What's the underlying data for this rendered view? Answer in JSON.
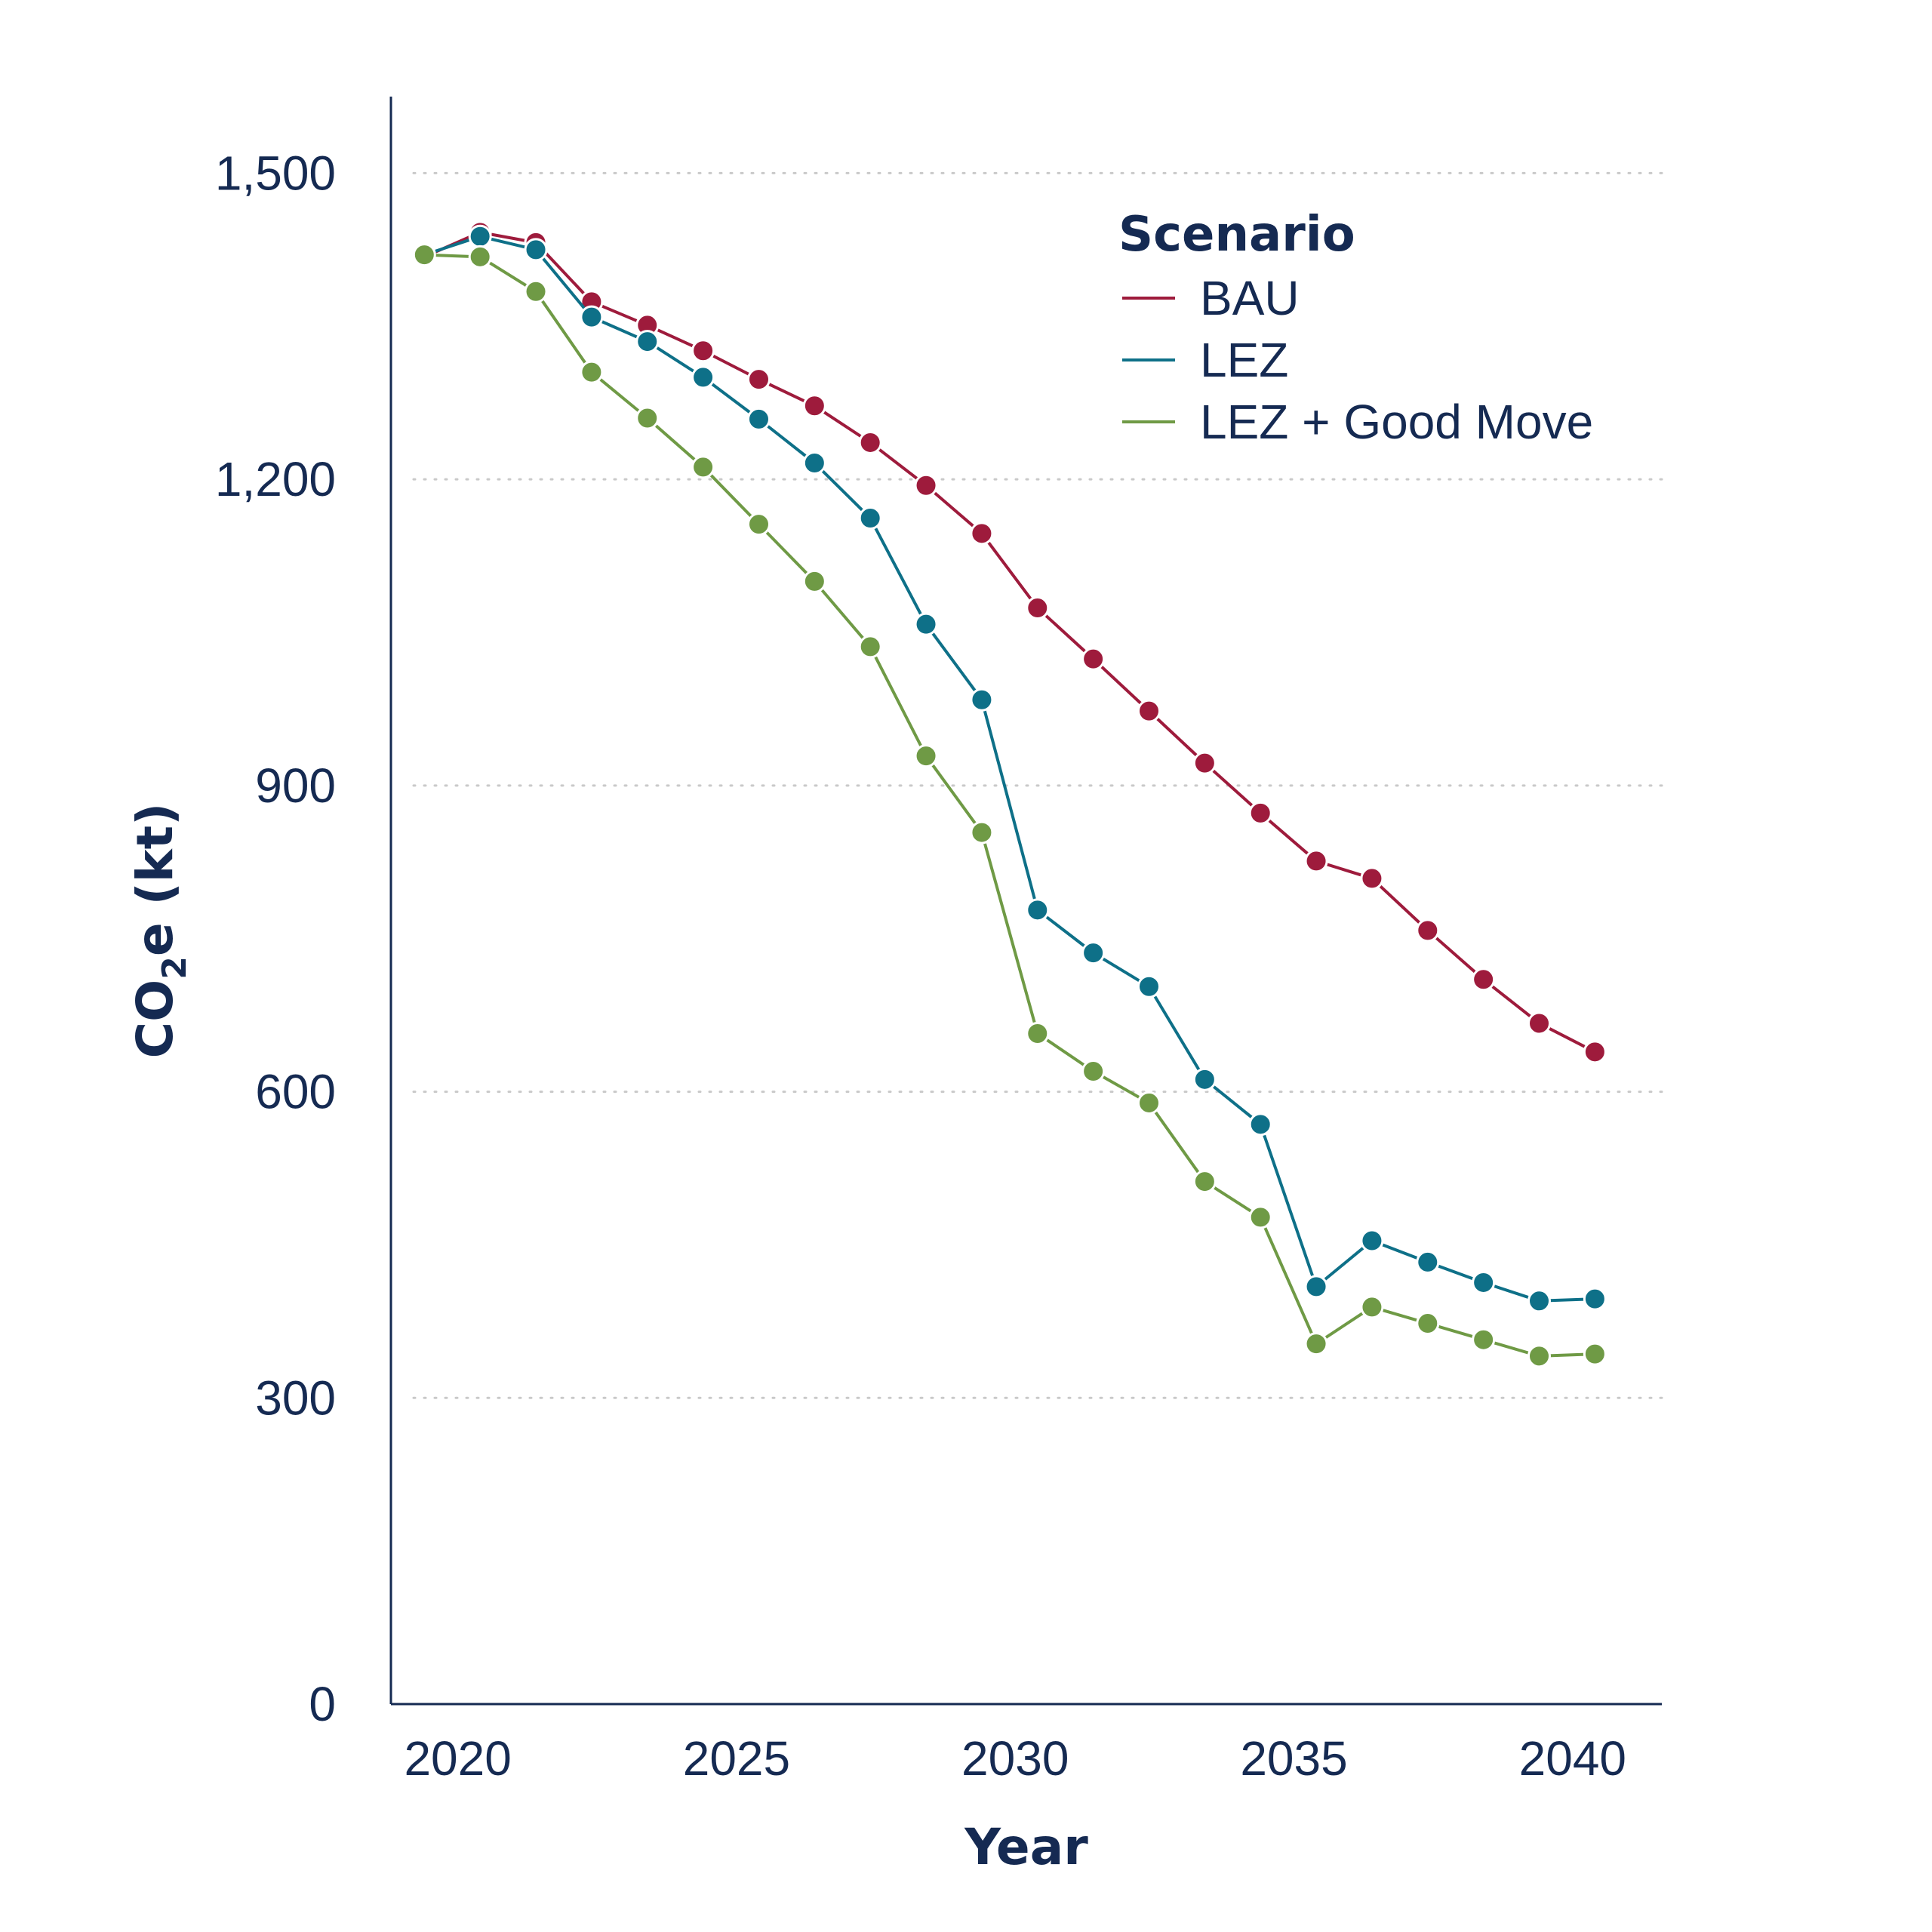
{
  "chart_data": {
    "type": "line",
    "xlabel": "Year",
    "ylabel": "CO",
    "ylabel_subscript": "2",
    "ylabel_suffix": "e (kt)",
    "xlim": [
      2018.8,
      2041.6
    ],
    "ylim": [
      0,
      1575
    ],
    "xticks": [
      2020,
      2025,
      2030,
      2035,
      2040
    ],
    "xtick_labels": [
      "2020",
      "2025",
      "2030",
      "2035",
      "2040"
    ],
    "yticks": [
      0,
      300,
      600,
      900,
      1200,
      1500
    ],
    "ytick_labels": [
      "0",
      "300",
      "600",
      "900",
      "1,200",
      "1,500"
    ],
    "grid": true,
    "legend": {
      "title": "Scenario",
      "placement": "top-right"
    },
    "x": [
      2019.4,
      2020.4,
      2021.4,
      2022.4,
      2023.4,
      2024.4,
      2025.4,
      2026.4,
      2027.4,
      2028.4,
      2029.4,
      2030.4,
      2031.4,
      2032.4,
      2033.4,
      2034.4,
      2035.4,
      2036.4,
      2037.4,
      2038.4,
      2039.4,
      2040.4
    ],
    "series": [
      {
        "name": "BAU",
        "color": "#9e1b3c",
        "values": [
          1418,
          1442,
          1432,
          1374,
          1351,
          1326,
          1298,
          1272,
          1236,
          1194,
          1147,
          1074,
          1024,
          973,
          922,
          873,
          826,
          809,
          758,
          710,
          667,
          639
        ]
      },
      {
        "name": "LEZ",
        "color": "#0e7088",
        "values": [
          1420,
          1438,
          1425,
          1359,
          1335,
          1300,
          1259,
          1216,
          1162,
          1058,
          984,
          778,
          736,
          703,
          612,
          568,
          409,
          454,
          433,
          413,
          395,
          397
        ]
      },
      {
        "name": "LEZ + Good Move",
        "color": "#6f9a45",
        "values": [
          1420,
          1418,
          1384,
          1305,
          1260,
          1212,
          1156,
          1100,
          1036,
          929,
          854,
          657,
          620,
          589,
          512,
          477,
          353,
          389,
          373,
          357,
          341,
          343
        ]
      }
    ]
  }
}
